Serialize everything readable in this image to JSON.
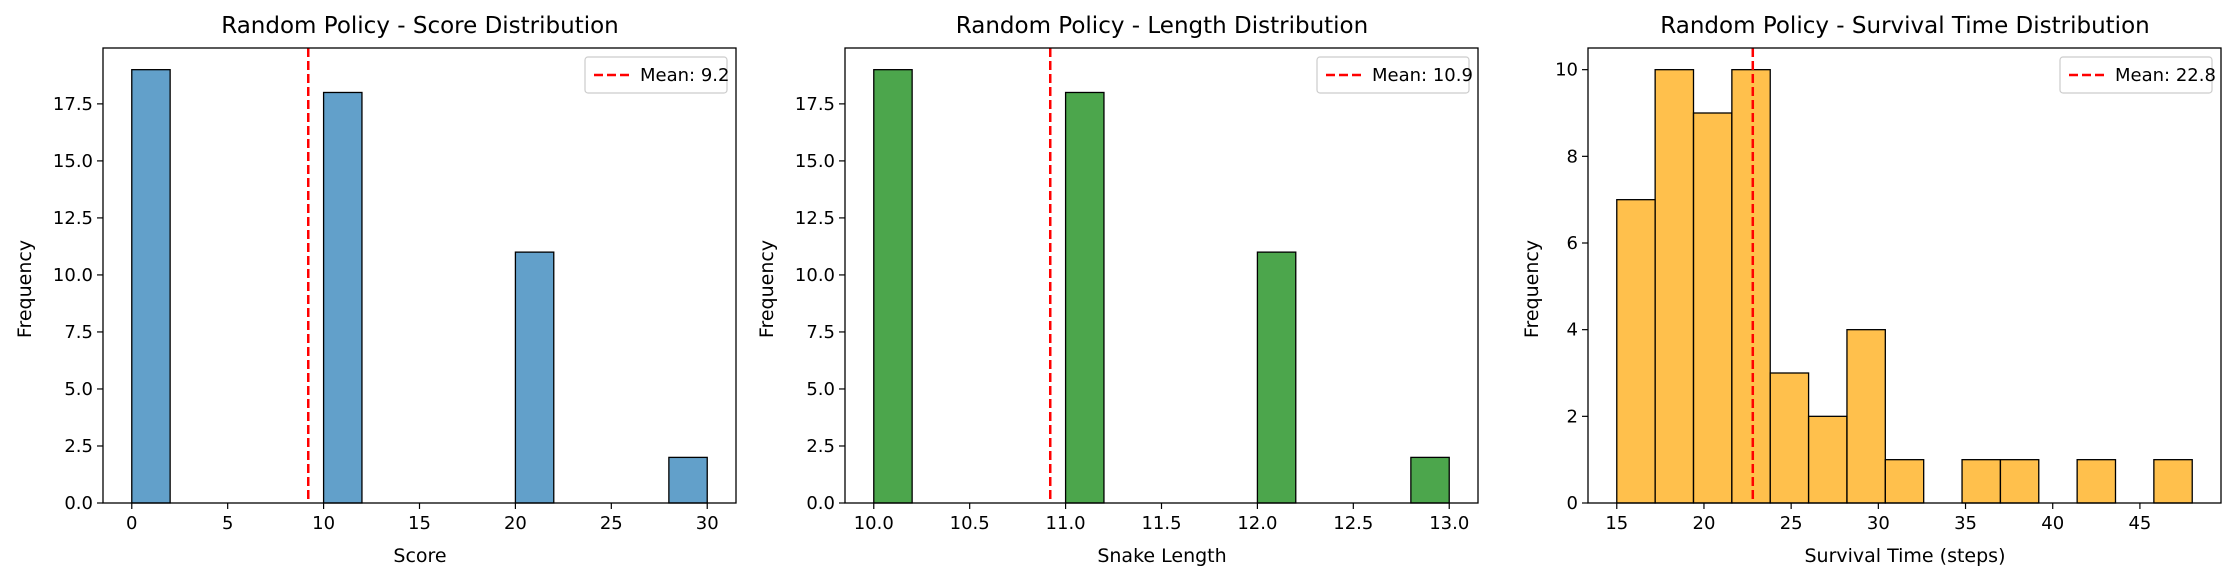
{
  "chart_data": [
    {
      "type": "bar",
      "title": "Random Policy - Score Distribution",
      "xlabel": "Score",
      "ylabel": "Frequency",
      "xlim": [
        -1.5,
        31.5
      ],
      "ylim": [
        0,
        19.95
      ],
      "xticks": [
        0,
        5,
        10,
        15,
        20,
        25,
        30
      ],
      "xtick_labels": [
        "0",
        "5",
        "10",
        "15",
        "20",
        "25",
        "30"
      ],
      "yticks": [
        0,
        2.5,
        5,
        7.5,
        10,
        12.5,
        15,
        17.5
      ],
      "ytick_labels": [
        "0.0",
        "2.5",
        "5.0",
        "7.5",
        "10.0",
        "12.5",
        "15.0",
        "17.5"
      ],
      "bin_edges": [
        0,
        2,
        4,
        6,
        8,
        10,
        12,
        14,
        16,
        18,
        20,
        22,
        24,
        26,
        28,
        30
      ],
      "values": [
        19,
        0,
        0,
        0,
        0,
        18,
        0,
        0,
        0,
        0,
        11,
        0,
        0,
        0,
        2
      ],
      "color": "#1f77b4",
      "mean": 9.2,
      "mean_label": "Mean: 9.2",
      "mean_color": "#ff0000",
      "legend_position": "top-right"
    },
    {
      "type": "bar",
      "title": "Random Policy - Length Distribution",
      "xlabel": "Snake Length",
      "ylabel": "Frequency",
      "xlim": [
        9.85,
        13.15
      ],
      "ylim": [
        0,
        19.95
      ],
      "xticks": [
        10,
        10.5,
        11,
        11.5,
        12,
        12.5,
        13
      ],
      "xtick_labels": [
        "10.0",
        "10.5",
        "11.0",
        "11.5",
        "12.0",
        "12.5",
        "13.0"
      ],
      "yticks": [
        0,
        2.5,
        5,
        7.5,
        10,
        12.5,
        15,
        17.5
      ],
      "ytick_labels": [
        "0.0",
        "2.5",
        "5.0",
        "7.5",
        "10.0",
        "12.5",
        "15.0",
        "17.5"
      ],
      "bin_edges": [
        10,
        10.2,
        10.4,
        10.6,
        10.8,
        11,
        11.2,
        11.4,
        11.6,
        11.8,
        12,
        12.2,
        12.4,
        12.6,
        12.8,
        13
      ],
      "values": [
        19,
        0,
        0,
        0,
        0,
        18,
        0,
        0,
        0,
        0,
        11,
        0,
        0,
        0,
        2
      ],
      "color": "#008000",
      "mean": 10.92,
      "mean_label": "Mean: 10.9",
      "mean_color": "#ff0000",
      "legend_position": "top-right"
    },
    {
      "type": "bar",
      "title": "Random Policy - Survival Time Distribution",
      "xlabel": "Survival Time (steps)",
      "ylabel": "Frequency",
      "xlim": [
        13.35,
        49.65
      ],
      "ylim": [
        0,
        10.5
      ],
      "xticks": [
        15,
        20,
        25,
        30,
        35,
        40,
        45
      ],
      "xtick_labels": [
        "15",
        "20",
        "25",
        "30",
        "35",
        "40",
        "45"
      ],
      "yticks": [
        0,
        2,
        4,
        6,
        8,
        10
      ],
      "ytick_labels": [
        "0",
        "2",
        "4",
        "6",
        "8",
        "10"
      ],
      "bin_edges": [
        15,
        17.2,
        19.4,
        21.6,
        23.8,
        26,
        28.2,
        30.4,
        32.6,
        34.8,
        37,
        39.2,
        41.4,
        43.6,
        45.8,
        48
      ],
      "values": [
        7,
        10,
        9,
        10,
        3,
        2,
        4,
        1,
        0,
        1,
        1,
        0,
        1,
        0,
        1
      ],
      "color": "#ffa500",
      "mean": 22.8,
      "mean_label": "Mean: 22.8",
      "mean_color": "#ff0000",
      "legend_position": "top-right"
    }
  ]
}
